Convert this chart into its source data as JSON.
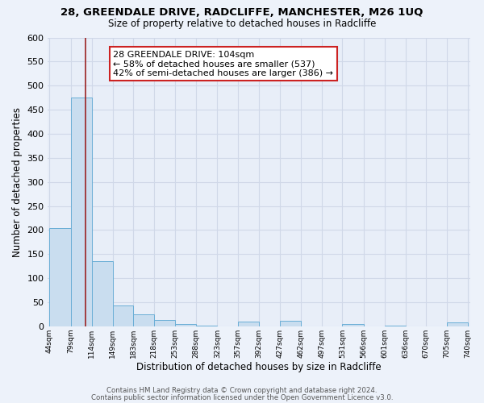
{
  "title1": "28, GREENDALE DRIVE, RADCLIFFE, MANCHESTER, M26 1UQ",
  "title2": "Size of property relative to detached houses in Radcliffe",
  "xlabel": "Distribution of detached houses by size in Radcliffe",
  "ylabel": "Number of detached properties",
  "bar_edges": [
    44,
    79,
    114,
    149,
    183,
    218,
    253,
    288,
    323,
    357,
    392,
    427,
    462,
    497,
    531,
    566,
    601,
    636,
    670,
    705,
    740
  ],
  "bar_heights": [
    204,
    476,
    136,
    43,
    24,
    13,
    5,
    1,
    0,
    9,
    0,
    11,
    0,
    0,
    5,
    0,
    2,
    0,
    0,
    8
  ],
  "bar_color": "#c9ddef",
  "bar_edge_color": "#6aaed6",
  "property_line_x": 104,
  "property_line_color": "#9b2222",
  "annotation_line1": "28 GREENDALE DRIVE: 104sqm",
  "annotation_line2": "← 58% of detached houses are smaller (537)",
  "annotation_line3": "42% of semi-detached houses are larger (386) →",
  "annotation_box_color": "#ffffff",
  "annotation_box_edge": "#cc2222",
  "ylim": [
    0,
    600
  ],
  "yticks": [
    0,
    50,
    100,
    150,
    200,
    250,
    300,
    350,
    400,
    450,
    500,
    550,
    600
  ],
  "tick_labels": [
    "44sqm",
    "79sqm",
    "114sqm",
    "149sqm",
    "183sqm",
    "218sqm",
    "253sqm",
    "288sqm",
    "323sqm",
    "357sqm",
    "392sqm",
    "427sqm",
    "462sqm",
    "497sqm",
    "531sqm",
    "566sqm",
    "601sqm",
    "636sqm",
    "670sqm",
    "705sqm",
    "740sqm"
  ],
  "footer1": "Contains HM Land Registry data © Crown copyright and database right 2024.",
  "footer2": "Contains public sector information licensed under the Open Government Licence v3.0.",
  "bg_color": "#edf2fa",
  "plot_bg_color": "#e8eef8",
  "grid_color": "#d0d8e8"
}
